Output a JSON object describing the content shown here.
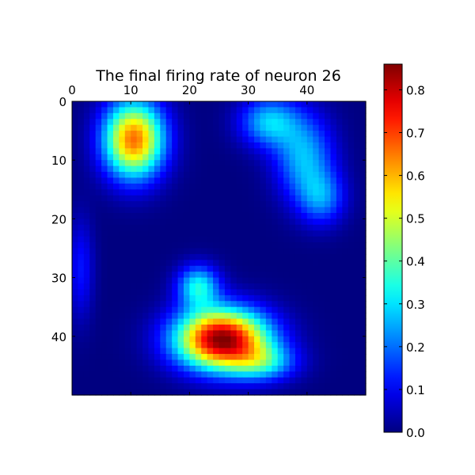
{
  "chart_data": {
    "type": "heatmap",
    "title": "The final firing rate of neuron 26",
    "xlabel": "",
    "ylabel": "",
    "grid_size": [
      50,
      50
    ],
    "x_ticks": [
      0,
      10,
      20,
      30,
      40
    ],
    "y_ticks": [
      0,
      10,
      20,
      30,
      40
    ],
    "x_axis_position": "top",
    "colormap": "jet",
    "colorbar": {
      "range": [
        0.0,
        0.86
      ],
      "ticks": [
        "0.0",
        "0.1",
        "0.2",
        "0.3",
        "0.4",
        "0.5",
        "0.6",
        "0.7",
        "0.8"
      ]
    },
    "hotspots": [
      {
        "x": 10,
        "y": 6,
        "sx": 3.6,
        "sy": 4.6,
        "value": 0.66
      },
      {
        "x": 25,
        "y": 40,
        "sx": 5.5,
        "sy": 3.6,
        "value": 0.86
      },
      {
        "x": 21,
        "y": 31,
        "sx": 2.5,
        "sy": 2.5,
        "value": 0.32
      },
      {
        "x": 32,
        "y": 44,
        "sx": 4.0,
        "sy": 2.2,
        "value": 0.25
      },
      {
        "x": 33,
        "y": 3,
        "sx": 3.5,
        "sy": 3.0,
        "value": 0.27
      },
      {
        "x": 39,
        "y": 9,
        "sx": 3.5,
        "sy": 5.0,
        "value": 0.26
      },
      {
        "x": 42,
        "y": 16,
        "sx": 2.8,
        "sy": 3.2,
        "value": 0.2
      },
      {
        "x": 1,
        "y": 28,
        "sx": 1.5,
        "sy": 6.0,
        "value": 0.12
      }
    ]
  }
}
